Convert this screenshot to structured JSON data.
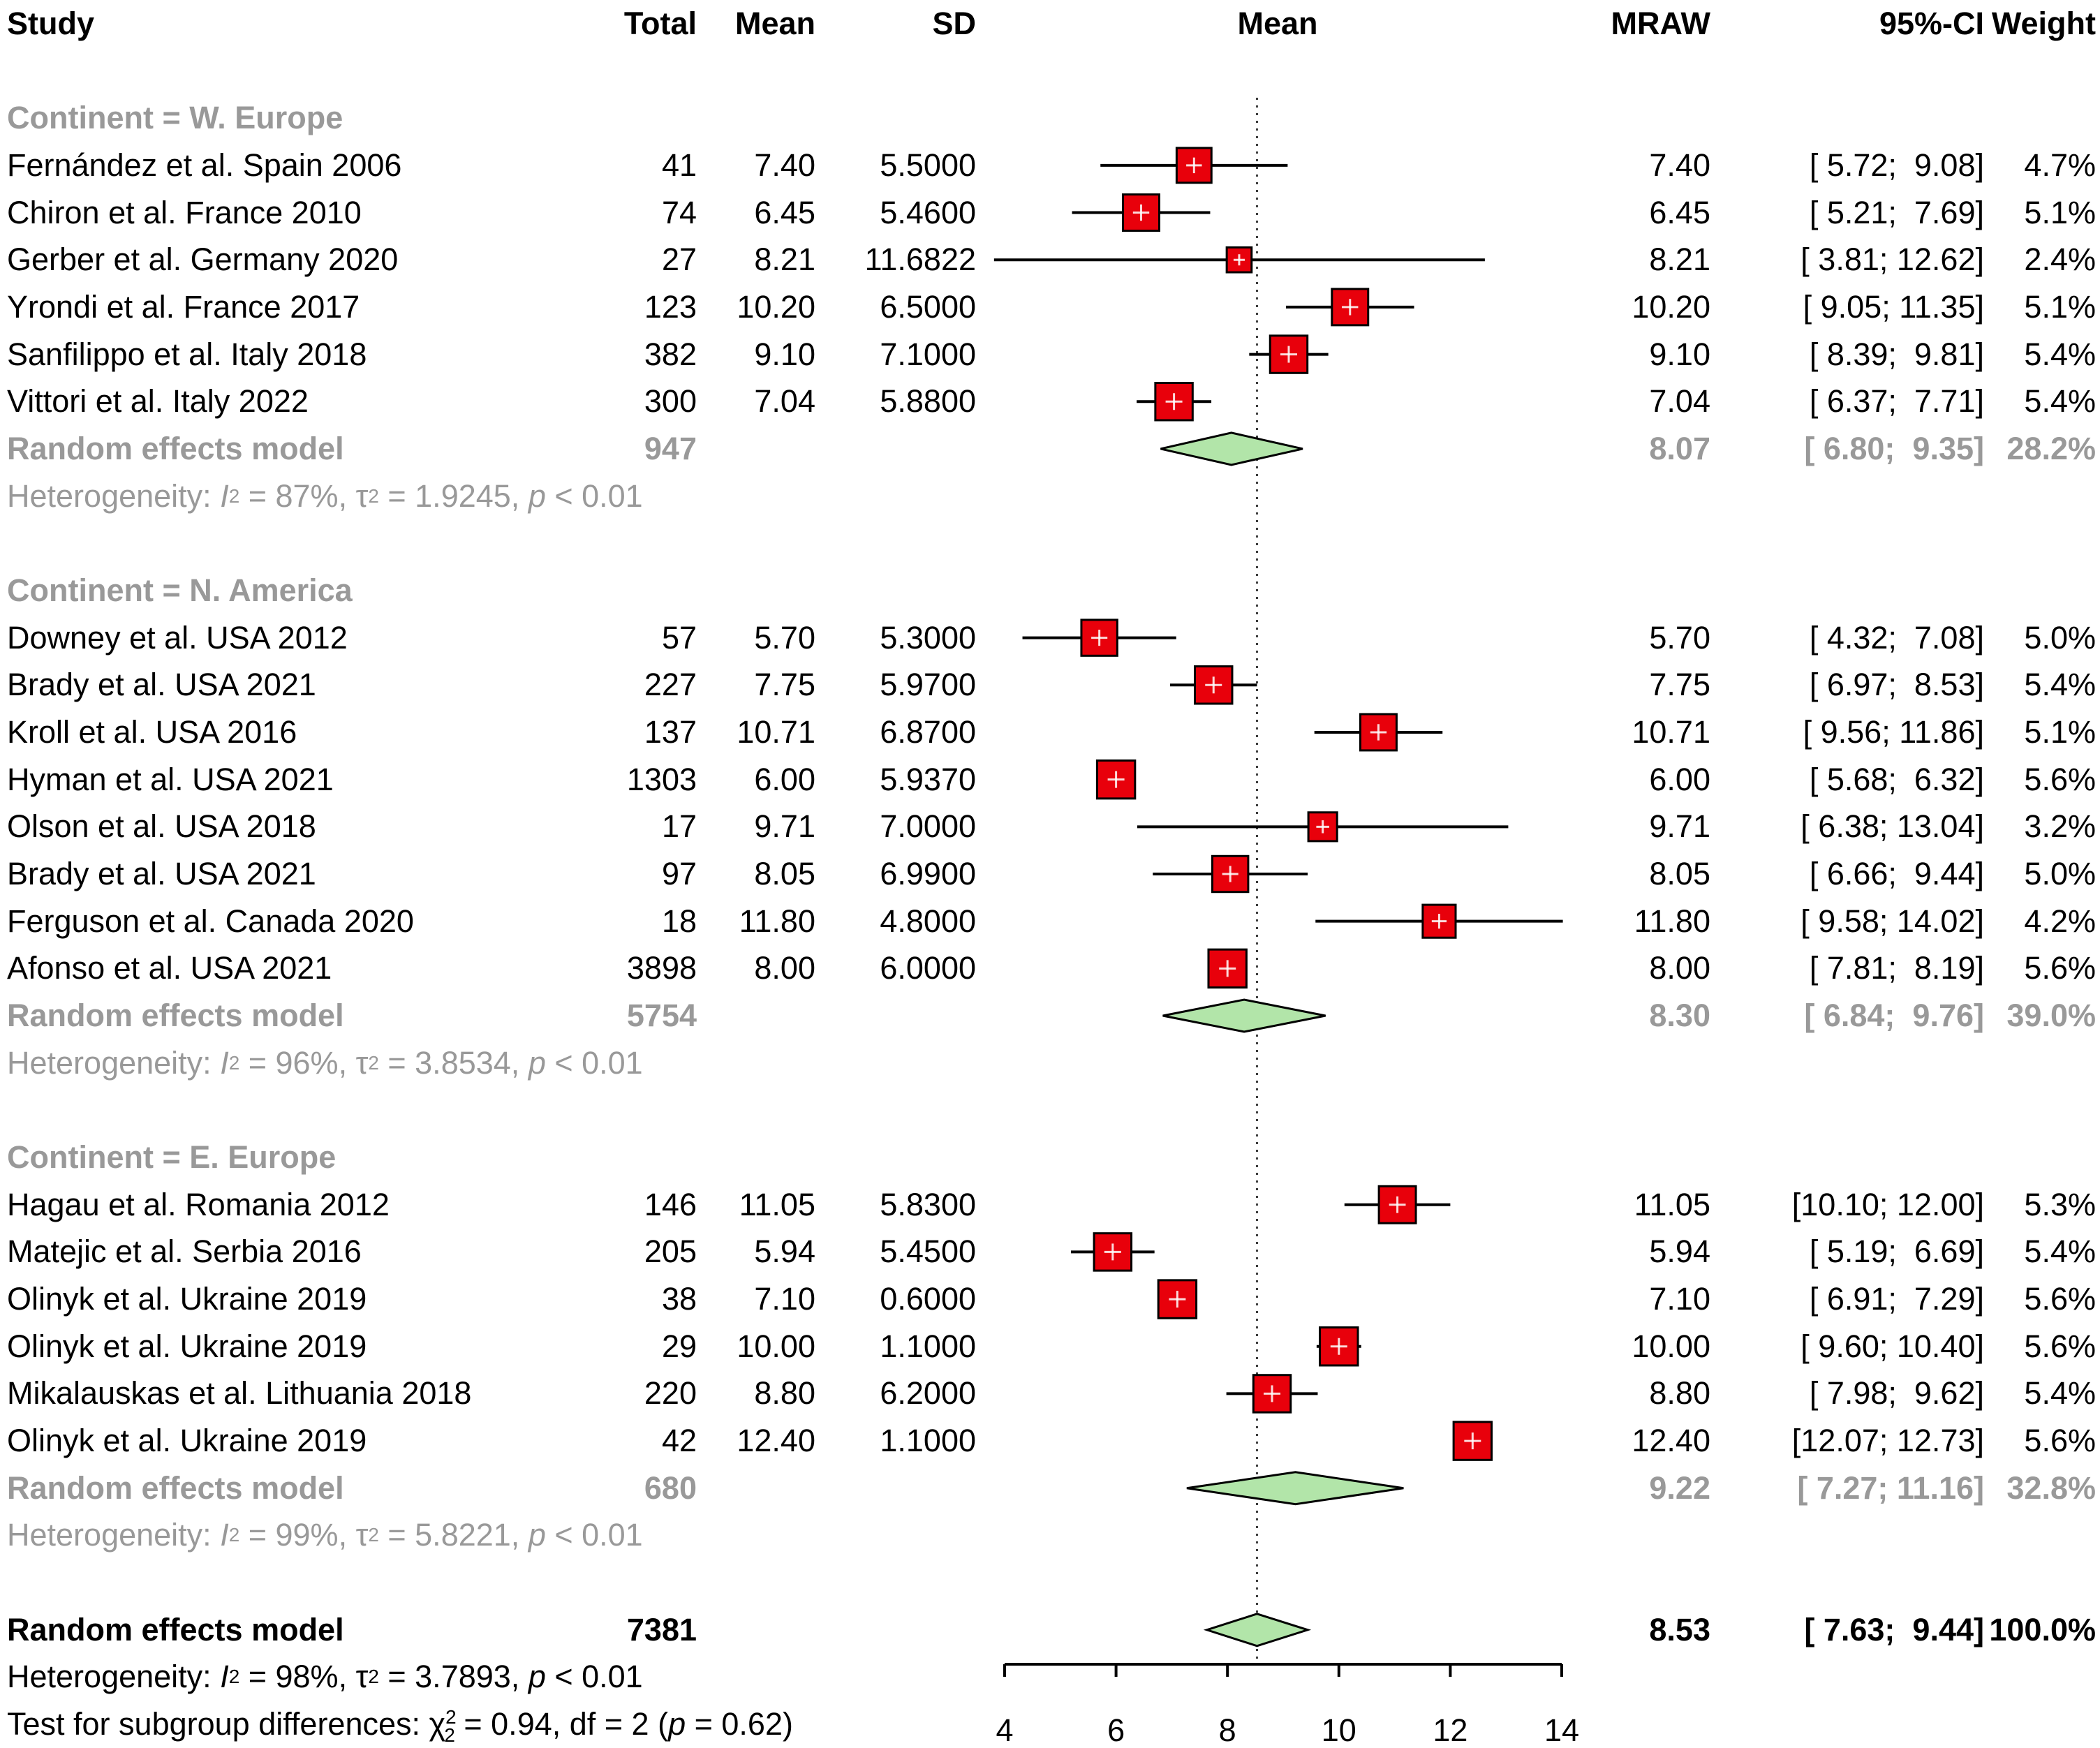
{
  "header": {
    "study": "Study",
    "total": "Total",
    "mean": "Mean",
    "sd": "SD",
    "plot_mean": "Mean",
    "mraw": "MRAW",
    "ci": "95%-CI",
    "weight": "Weight"
  },
  "chart_data": {
    "type": "forest",
    "x_axis": {
      "min": 4,
      "max": 14,
      "ticks": [
        4,
        6,
        8,
        10,
        12,
        14
      ],
      "tick_labels": [
        "4",
        "6",
        "8",
        "10",
        "12",
        "14"
      ],
      "ref_line": 8.53
    },
    "colors": {
      "square": "#e8000b",
      "square_border": "#000000",
      "square_cross": "#ffffff",
      "diamond": "#b2e5a9",
      "diamond_border": "#000000",
      "subtotal": "#999999",
      "text": "#000000",
      "axis": "#000000",
      "ref_line": "#3c3c3c"
    },
    "groups": [
      {
        "label": "Continent = W. Europe",
        "studies": [
          {
            "study": "Fernández et al. Spain 2006",
            "total": "41",
            "mean": "7.40",
            "sd": "5.5000",
            "mraw": "7.40",
            "lo": 5.72,
            "hi": 9.08,
            "ci_text": "[ 5.72;  9.08]",
            "weight": "4.7%"
          },
          {
            "study": "Chiron et al. France 2010",
            "total": "74",
            "mean": "6.45",
            "sd": "5.4600",
            "mraw": "6.45",
            "lo": 5.21,
            "hi": 7.69,
            "ci_text": "[ 5.21;  7.69]",
            "weight": "5.1%"
          },
          {
            "study": "Gerber et al. Germany 2020",
            "total": "27",
            "mean": "8.21",
            "sd": "11.6822",
            "mraw": "8.21",
            "lo": 3.81,
            "hi": 12.62,
            "ci_text": "[ 3.81; 12.62]",
            "weight": "2.4%"
          },
          {
            "study": "Yrondi et al. France 2017",
            "total": "123",
            "mean": "10.20",
            "sd": "6.5000",
            "mraw": "10.20",
            "lo": 9.05,
            "hi": 11.35,
            "ci_text": "[ 9.05; 11.35]",
            "weight": "5.1%"
          },
          {
            "study": "Sanfilippo et al. Italy 2018",
            "total": "382",
            "mean": "9.10",
            "sd": "7.1000",
            "mraw": "9.10",
            "lo": 8.39,
            "hi": 9.81,
            "ci_text": "[ 8.39;  9.81]",
            "weight": "5.4%"
          },
          {
            "study": "Vittori et al. Italy 2022",
            "total": "300",
            "mean": "7.04",
            "sd": "5.8800",
            "mraw": "7.04",
            "lo": 6.37,
            "hi": 7.71,
            "ci_text": "[ 6.37;  7.71]",
            "weight": "5.4%"
          }
        ],
        "pooled": {
          "label": "Random effects model",
          "total": "947",
          "mraw": "8.07",
          "est": 8.07,
          "lo": 6.8,
          "hi": 9.35,
          "ci_text": "[ 6.80;  9.35]",
          "weight": "28.2%"
        },
        "heterogeneity": {
          "label": "Heterogeneity:",
          "i2": "87%",
          "tau2": "1.9245",
          "p": "< 0.01"
        }
      },
      {
        "label": "Continent = N. America",
        "studies": [
          {
            "study": "Downey et al. USA 2012",
            "total": "57",
            "mean": "5.70",
            "sd": "5.3000",
            "mraw": "5.70",
            "lo": 4.32,
            "hi": 7.08,
            "ci_text": "[ 4.32;  7.08]",
            "weight": "5.0%"
          },
          {
            "study": "Brady et al. USA 2021",
            "total": "227",
            "mean": "7.75",
            "sd": "5.9700",
            "mraw": "7.75",
            "lo": 6.97,
            "hi": 8.53,
            "ci_text": "[ 6.97;  8.53]",
            "weight": "5.4%"
          },
          {
            "study": "Kroll et al. USA 2016",
            "total": "137",
            "mean": "10.71",
            "sd": "6.8700",
            "mraw": "10.71",
            "lo": 9.56,
            "hi": 11.86,
            "ci_text": "[ 9.56; 11.86]",
            "weight": "5.1%"
          },
          {
            "study": "Hyman et al. USA 2021",
            "total": "1303",
            "mean": "6.00",
            "sd": "5.9370",
            "mraw": "6.00",
            "lo": 5.68,
            "hi": 6.32,
            "ci_text": "[ 5.68;  6.32]",
            "weight": "5.6%"
          },
          {
            "study": "Olson et al. USA 2018",
            "total": "17",
            "mean": "9.71",
            "sd": "7.0000",
            "mraw": "9.71",
            "lo": 6.38,
            "hi": 13.04,
            "ci_text": "[ 6.38; 13.04]",
            "weight": "3.2%"
          },
          {
            "study": "Brady et al. USA 2021",
            "total": "97",
            "mean": "8.05",
            "sd": "6.9900",
            "mraw": "8.05",
            "lo": 6.66,
            "hi": 9.44,
            "ci_text": "[ 6.66;  9.44]",
            "weight": "5.0%"
          },
          {
            "study": "Ferguson et al. Canada 2020",
            "total": "18",
            "mean": "11.80",
            "sd": "4.8000",
            "mraw": "11.80",
            "lo": 9.58,
            "hi": 14.02,
            "ci_text": "[ 9.58; 14.02]",
            "weight": "4.2%"
          },
          {
            "study": "Afonso et al. USA 2021",
            "total": "3898",
            "mean": "8.00",
            "sd": "6.0000",
            "mraw": "8.00",
            "lo": 7.81,
            "hi": 8.19,
            "ci_text": "[ 7.81;  8.19]",
            "weight": "5.6%"
          }
        ],
        "pooled": {
          "label": "Random effects model",
          "total": "5754",
          "mraw": "8.30",
          "est": 8.3,
          "lo": 6.84,
          "hi": 9.76,
          "ci_text": "[ 6.84;  9.76]",
          "weight": "39.0%"
        },
        "heterogeneity": {
          "label": "Heterogeneity:",
          "i2": "96%",
          "tau2": "3.8534",
          "p": "< 0.01"
        }
      },
      {
        "label": "Continent = E. Europe",
        "studies": [
          {
            "study": "Hagau et al. Romania 2012",
            "total": "146",
            "mean": "11.05",
            "sd": "5.8300",
            "mraw": "11.05",
            "lo": 10.1,
            "hi": 12.0,
            "ci_text": "[10.10; 12.00]",
            "weight": "5.3%"
          },
          {
            "study": "Matejic et al. Serbia 2016",
            "total": "205",
            "mean": "5.94",
            "sd": "5.4500",
            "mraw": "5.94",
            "lo": 5.19,
            "hi": 6.69,
            "ci_text": "[ 5.19;  6.69]",
            "weight": "5.4%"
          },
          {
            "study": "Olinyk et al. Ukraine 2019",
            "total": "38",
            "mean": "7.10",
            "sd": "0.6000",
            "mraw": "7.10",
            "lo": 6.91,
            "hi": 7.29,
            "ci_text": "[ 6.91;  7.29]",
            "weight": "5.6%"
          },
          {
            "study": "Olinyk et al. Ukraine 2019",
            "total": "29",
            "mean": "10.00",
            "sd": "1.1000",
            "mraw": "10.00",
            "lo": 9.6,
            "hi": 10.4,
            "ci_text": "[ 9.60; 10.40]",
            "weight": "5.6%"
          },
          {
            "study": "Mikalauskas et al. Lithuania 2018",
            "total": "220",
            "mean": "8.80",
            "sd": "6.2000",
            "mraw": "8.80",
            "lo": 7.98,
            "hi": 9.62,
            "ci_text": "[ 7.98;  9.62]",
            "weight": "5.4%"
          },
          {
            "study": "Olinyk et al. Ukraine 2019",
            "total": "42",
            "mean": "12.40",
            "sd": "1.1000",
            "mraw": "12.40",
            "lo": 12.07,
            "hi": 12.73,
            "ci_text": "[12.07; 12.73]",
            "weight": "5.6%"
          }
        ],
        "pooled": {
          "label": "Random effects model",
          "total": "680",
          "mraw": "9.22",
          "est": 9.22,
          "lo": 7.27,
          "hi": 11.16,
          "ci_text": "[ 7.27; 11.16]",
          "weight": "32.8%"
        },
        "heterogeneity": {
          "label": "Heterogeneity:",
          "i2": "99%",
          "tau2": "5.8221",
          "p": "< 0.01"
        }
      }
    ],
    "overall": {
      "label": "Random effects model",
      "total": "7381",
      "mraw": "8.53",
      "est": 8.53,
      "lo": 7.63,
      "hi": 9.44,
      "ci_text": "[ 7.63;  9.44]",
      "weight": "100.0%",
      "heterogeneity": {
        "label": "Heterogeneity:",
        "i2": "98%",
        "tau2": "3.7893",
        "p": "< 0.01"
      },
      "subgroup_test": {
        "label": "Test for subgroup differences:",
        "chi2": "0.94",
        "df": "2",
        "p": "0.62"
      }
    }
  }
}
